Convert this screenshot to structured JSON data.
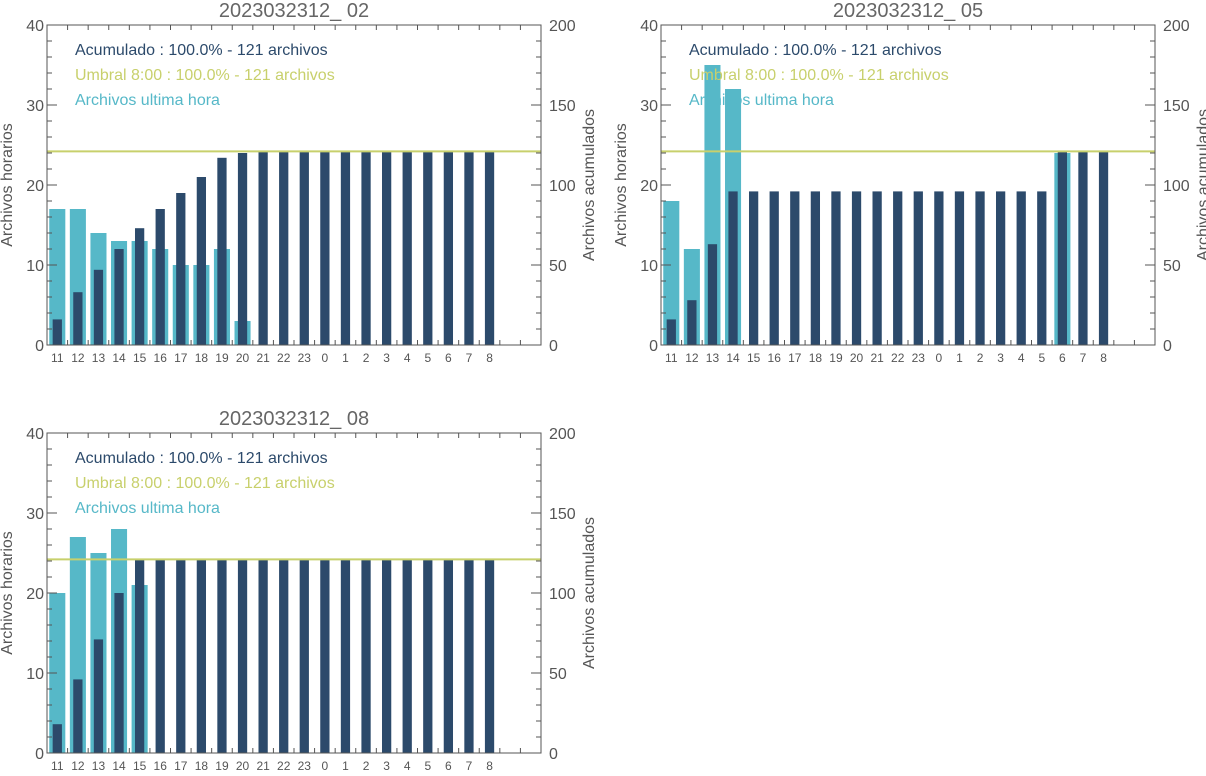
{
  "colors": {
    "hourly": "#56b8c8",
    "cumulative": "#2c4a6b",
    "threshold": "#c8d06c",
    "axis": "#555555",
    "title": "#666666"
  },
  "chart_data": [
    {
      "type": "bar",
      "title": "2023032312_ 02",
      "ylabel": "Archivos horarios",
      "y2label": "Archivos acumulados",
      "ylim": [
        0,
        40
      ],
      "y2lim": [
        0,
        200
      ],
      "yticks": [
        "0",
        "10",
        "20",
        "30",
        "40"
      ],
      "y2ticks": [
        "0",
        "50",
        "100",
        "150",
        "200"
      ],
      "categories": [
        "11",
        "12",
        "13",
        "14",
        "15",
        "16",
        "17",
        "18",
        "19",
        "20",
        "21",
        "22",
        "23",
        "0",
        "1",
        "2",
        "3",
        "4",
        "5",
        "6",
        "7",
        "8"
      ],
      "legend": [
        {
          "text": "Acumulado : 100.0% - 121 archivos",
          "series": "cumulative"
        },
        {
          "text": "Umbral 8:00 : 100.0% - 121 archivos",
          "series": "threshold"
        },
        {
          "text": "Archivos ultima hora",
          "series": "hourly"
        }
      ],
      "threshold": 121,
      "series": [
        {
          "key": "hourly",
          "values": [
            17,
            17,
            14,
            13,
            13,
            12,
            10,
            10,
            12,
            3,
            null,
            null,
            null,
            null,
            null,
            null,
            null,
            null,
            null,
            null,
            null,
            null
          ]
        },
        {
          "key": "cumulative",
          "values": [
            16,
            33,
            47,
            60,
            73,
            85,
            95,
            105,
            117,
            120,
            121,
            121,
            121,
            121,
            121,
            121,
            121,
            121,
            121,
            121,
            121,
            121
          ]
        }
      ]
    },
    {
      "type": "bar",
      "title": "2023032312_ 05",
      "ylabel": "Archivos horarios",
      "y2label": "Archivos acumulados",
      "ylim": [
        0,
        40
      ],
      "y2lim": [
        0,
        200
      ],
      "yticks": [
        "0",
        "10",
        "20",
        "30",
        "40"
      ],
      "y2ticks": [
        "0",
        "50",
        "100",
        "150",
        "200"
      ],
      "categories": [
        "11",
        "12",
        "13",
        "14",
        "15",
        "16",
        "17",
        "18",
        "19",
        "20",
        "21",
        "22",
        "23",
        "0",
        "1",
        "2",
        "3",
        "4",
        "5",
        "6",
        "7",
        "8"
      ],
      "legend": [
        {
          "text": "Acumulado : 100.0% - 121 archivos",
          "series": "cumulative"
        },
        {
          "text": "Umbral 8:00 : 100.0% - 121 archivos",
          "series": "threshold"
        },
        {
          "text": "Archivos ultima hora",
          "series": "hourly"
        }
      ],
      "threshold": 121,
      "series": [
        {
          "key": "hourly",
          "values": [
            18,
            12,
            35,
            32,
            null,
            null,
            null,
            null,
            null,
            null,
            null,
            null,
            null,
            null,
            null,
            null,
            null,
            null,
            null,
            24,
            null,
            null
          ]
        },
        {
          "key": "cumulative",
          "values": [
            16,
            28,
            63,
            96,
            96,
            96,
            96,
            96,
            96,
            96,
            96,
            96,
            96,
            96,
            96,
            96,
            96,
            96,
            96,
            121,
            121,
            121
          ]
        }
      ]
    },
    {
      "type": "bar",
      "title": "2023032312_ 08",
      "ylabel": "Archivos horarios",
      "y2label": "Archivos acumulados",
      "ylim": [
        0,
        40
      ],
      "y2lim": [
        0,
        200
      ],
      "yticks": [
        "0",
        "10",
        "20",
        "30",
        "40"
      ],
      "y2ticks": [
        "0",
        "50",
        "100",
        "150",
        "200"
      ],
      "categories": [
        "11",
        "12",
        "13",
        "14",
        "15",
        "16",
        "17",
        "18",
        "19",
        "20",
        "21",
        "22",
        "23",
        "0",
        "1",
        "2",
        "3",
        "4",
        "5",
        "6",
        "7",
        "8"
      ],
      "legend": [
        {
          "text": "Acumulado : 100.0% - 121 archivos",
          "series": "cumulative"
        },
        {
          "text": "Umbral 8:00 : 100.0% - 121 archivos",
          "series": "threshold"
        },
        {
          "text": "Archivos ultima hora",
          "series": "hourly"
        }
      ],
      "threshold": 121,
      "series": [
        {
          "key": "hourly",
          "values": [
            20,
            27,
            25,
            28,
            21,
            null,
            null,
            null,
            null,
            null,
            null,
            null,
            null,
            null,
            null,
            null,
            null,
            null,
            null,
            null,
            null,
            null
          ]
        },
        {
          "key": "cumulative",
          "values": [
            18,
            46,
            71,
            100,
            121,
            121,
            121,
            121,
            121,
            121,
            121,
            121,
            121,
            121,
            121,
            121,
            121,
            121,
            121,
            121,
            121,
            121
          ]
        }
      ]
    }
  ]
}
